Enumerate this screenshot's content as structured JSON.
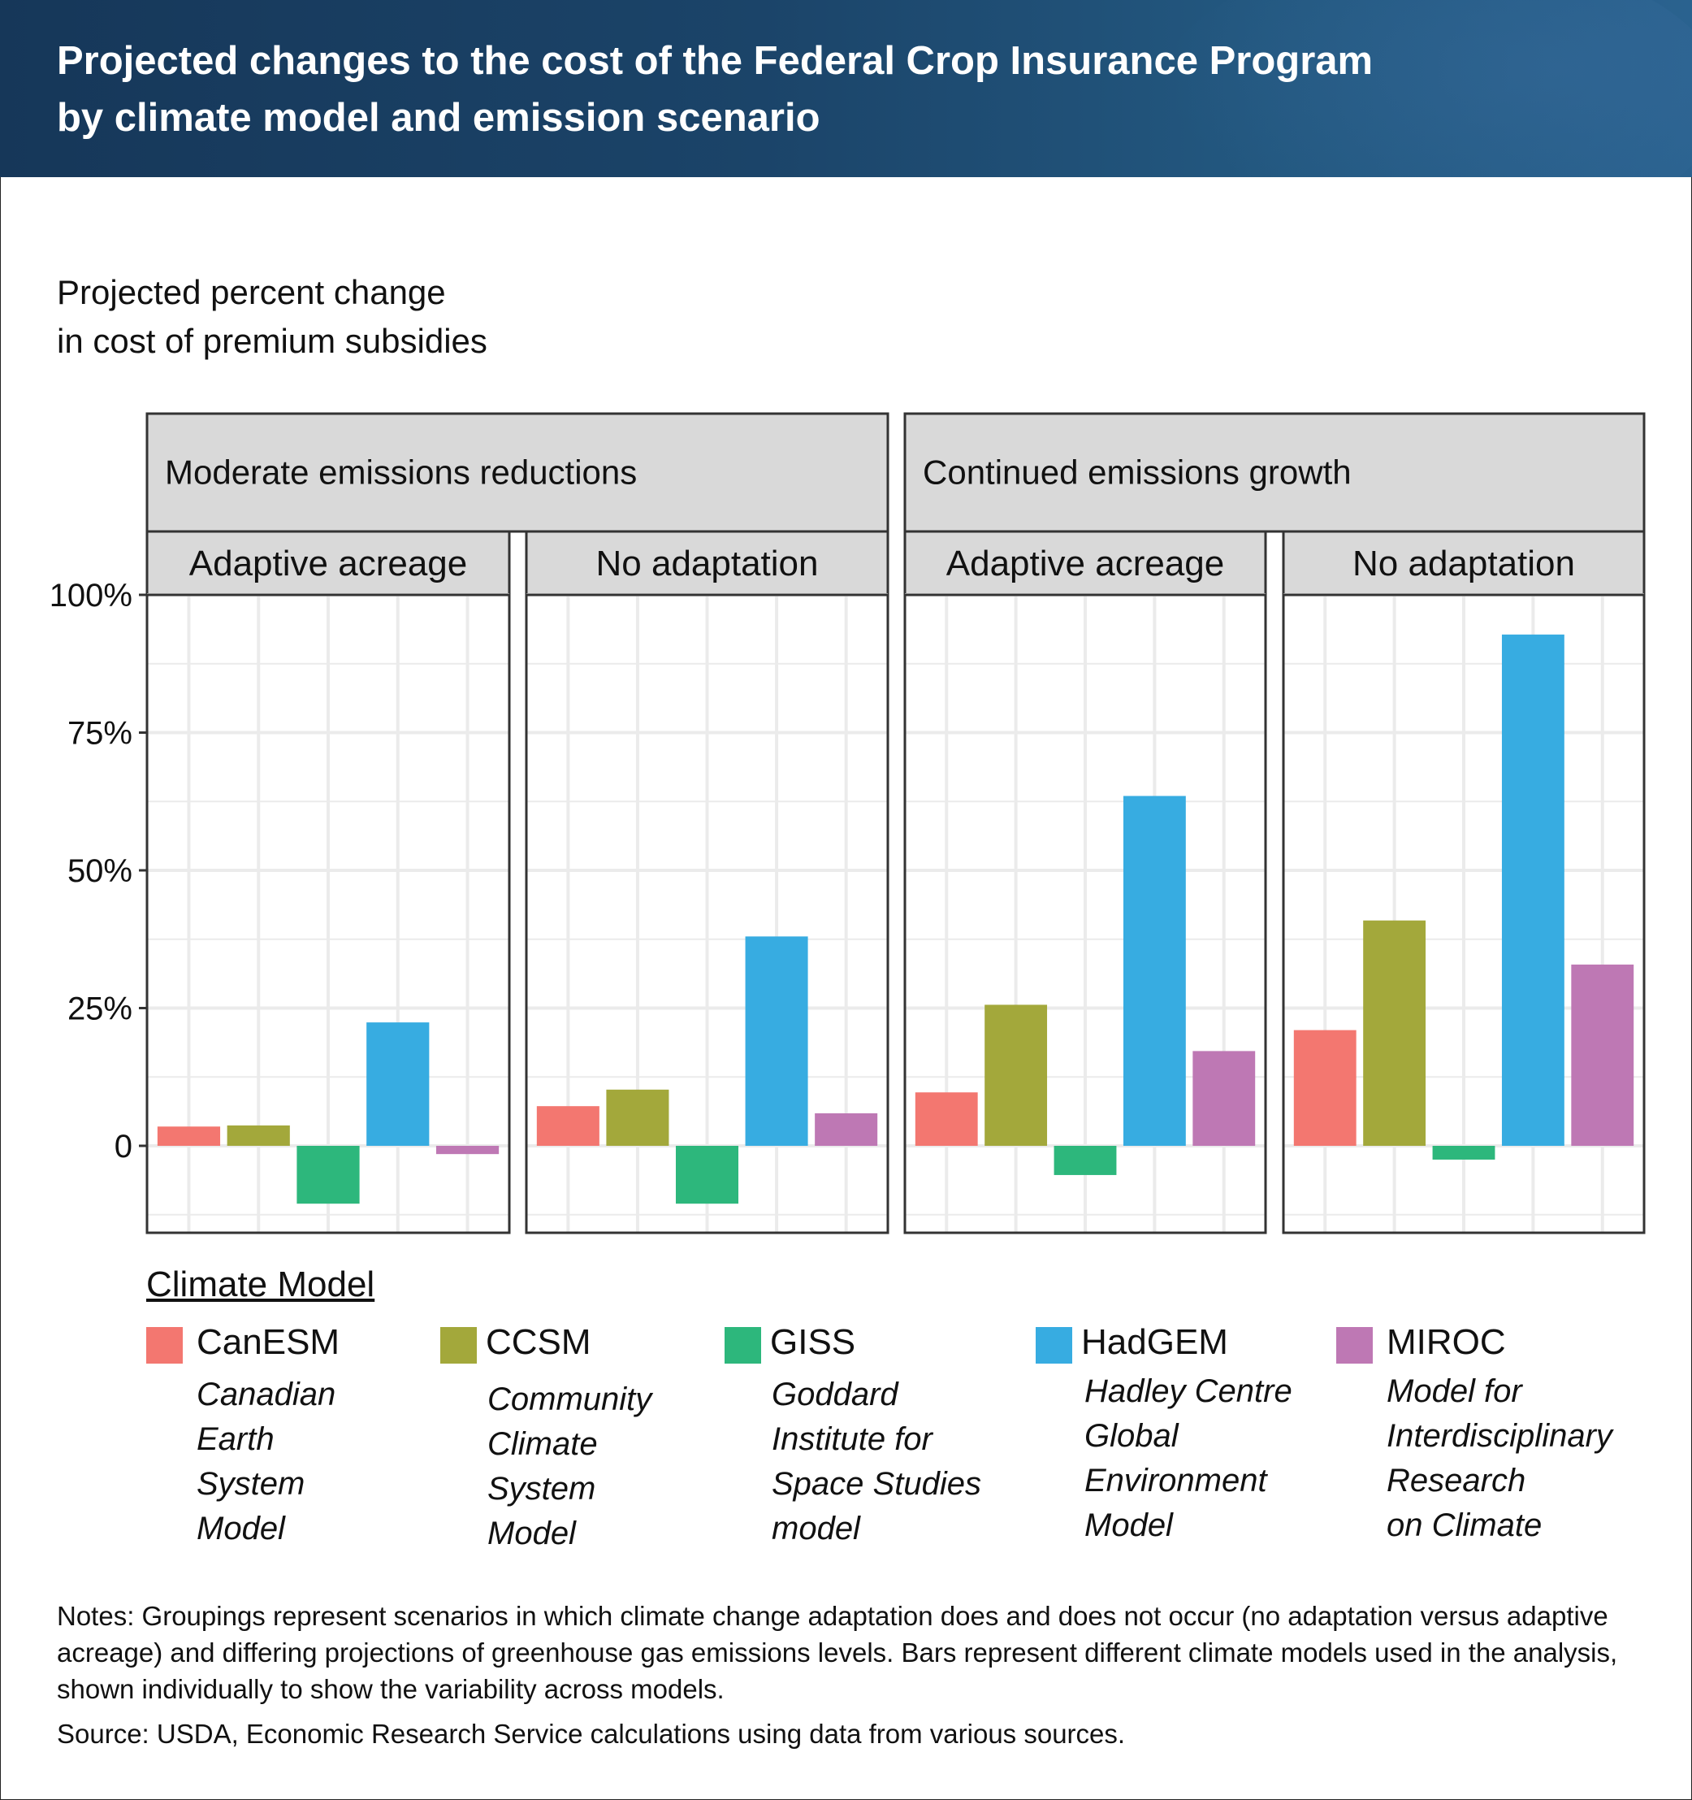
{
  "header": {
    "title_line1": "Projected changes to the cost of the Federal Crop Insurance Program",
    "title_line2": "by climate model and emission scenario",
    "bg_color_start": "#163759",
    "bg_color_end": "#2a628f"
  },
  "y_axis_label": {
    "line1": "Projected percent change",
    "line2": "in cost of premium subsidies"
  },
  "legend": {
    "title": "Climate Model",
    "items": [
      {
        "abbr": "CanESM",
        "full": "Canadian\nEarth\nSystem\nModel",
        "color": "#F37770"
      },
      {
        "abbr": "CCSM",
        "full": "Community\nClimate\nSystem\nModel",
        "color": "#A3A83B"
      },
      {
        "abbr": "GISS",
        "full": "Goddard\nInstitute for\nSpace Studies\nmodel",
        "color": "#2DB77C"
      },
      {
        "abbr": "HadGEM",
        "full": "Hadley Centre\nGlobal\nEnvironment\nModel",
        "color": "#37ACE1"
      },
      {
        "abbr": "MIROC",
        "full": "Model for\nInterdisciplinary\nResearch\non Climate",
        "color": "#BE78B4"
      }
    ]
  },
  "notes": "Notes: Groupings represent scenarios in which climate change adaptation does and does not occur (no adaptation versus adaptive acreage) and differing projections of greenhouse gas emissions levels. Bars represent different climate models used in the analysis, shown individually to show the variability across models.",
  "source": "Source: USDA, Economic Research Service calculations using data from various sources.",
  "chart_data": {
    "type": "bar",
    "title": "Projected changes to the cost of the Federal Crop Insurance Program by climate model and emission scenario",
    "ylabel": "Projected percent change in cost of premium subsidies",
    "xlabel": "",
    "ylim": [
      -15.8,
      100
    ],
    "yticks": [
      0,
      25,
      50,
      75,
      100
    ],
    "ytick_labels": [
      "0",
      "25%",
      "50%",
      "75%",
      "100%"
    ],
    "grid": true,
    "legend_position": "bottom",
    "categories": [
      "CanESM",
      "CCSM",
      "GISS",
      "HadGEM",
      "MIROC"
    ],
    "colors": [
      "#F37770",
      "#A3A83B",
      "#2DB77C",
      "#37ACE1",
      "#BE78B4"
    ],
    "facet_groups": [
      {
        "label": "Moderate emissions reductions",
        "panels": [
          0,
          1
        ]
      },
      {
        "label": "Continued emissions growth",
        "panels": [
          2,
          3
        ]
      }
    ],
    "panels": [
      {
        "group": "Moderate emissions reductions",
        "label": "Adaptive acreage",
        "values": [
          3.5,
          3.7,
          -10.5,
          22.4,
          -1.5
        ]
      },
      {
        "group": "Moderate emissions reductions",
        "label": "No adaptation",
        "values": [
          7.2,
          10.2,
          -10.5,
          38.0,
          5.9
        ]
      },
      {
        "group": "Continued emissions growth",
        "label": "Adaptive acreage",
        "values": [
          9.7,
          25.6,
          -5.3,
          63.5,
          17.2
        ]
      },
      {
        "group": "Continued emissions growth",
        "label": "No adaptation",
        "values": [
          21.0,
          40.9,
          -2.5,
          92.8,
          32.9
        ]
      }
    ]
  }
}
